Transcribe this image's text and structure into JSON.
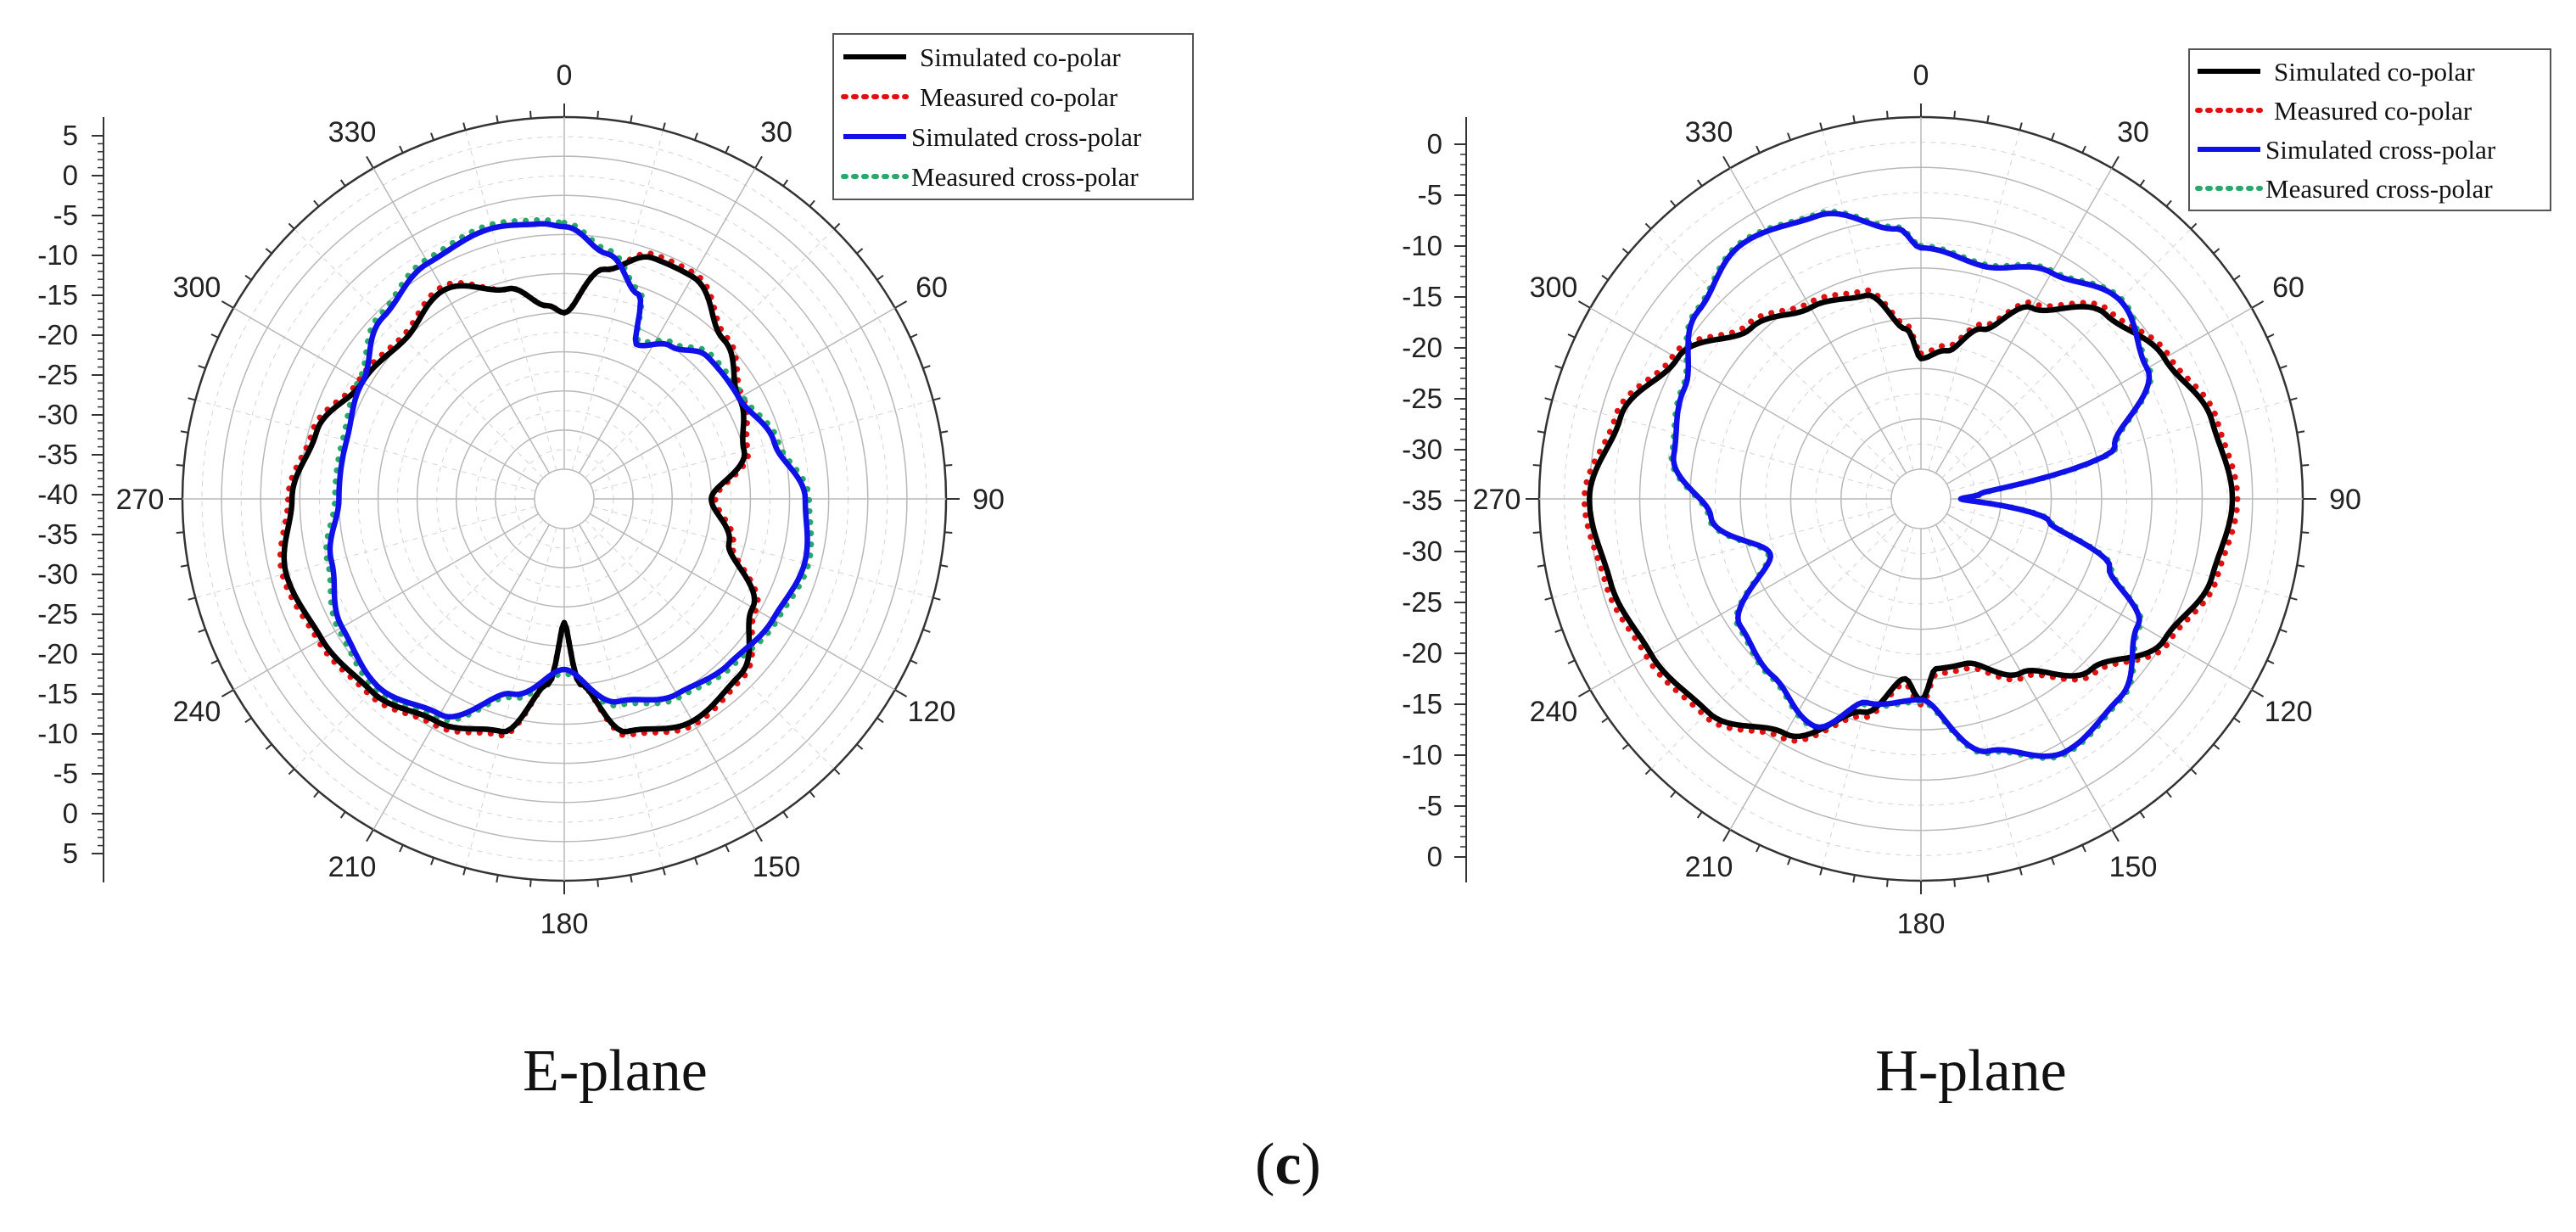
{
  "figure_label": {
    "open": "(",
    "letter": "c",
    "close": ")"
  },
  "colors": {
    "sim_co": "#000000",
    "meas_co": "#e01010",
    "sim_cross": "#1010e8",
    "meas_cross": "#2aa86a",
    "grid": "#b8b8b8",
    "axis": "#333333"
  },
  "legend_entries": [
    "Simulated co-polar",
    "Measured co-polar",
    "Simulated cross-polar",
    "Measured cross-polar"
  ],
  "chart_data": [
    {
      "type": "polar-line",
      "title": "E-plane",
      "angle_labels": [
        "0",
        "30",
        "60",
        "90",
        "120",
        "150",
        "180",
        "210",
        "240",
        "270",
        "300",
        "330"
      ],
      "radial_axis_ticks": [
        "5",
        "0",
        "-5",
        "-10",
        "-15",
        "-20",
        "-25",
        "-30",
        "-35",
        "-40",
        "-35",
        "-30",
        "-25",
        "-20",
        "-15",
        "-10",
        "-5",
        "0",
        "5"
      ],
      "radial_range_db": [
        -40,
        5
      ],
      "series": [
        {
          "name": "Simulated co-polar",
          "style": "solid",
          "angles_deg": [
            0,
            10,
            20,
            30,
            45,
            60,
            75,
            90,
            105,
            120,
            135,
            150,
            165,
            175,
            180,
            185,
            195,
            210,
            225,
            240,
            255,
            270,
            285,
            300,
            315,
            330,
            345,
            355
          ],
          "gain_db": [
            -20,
            -14,
            -11,
            -11,
            -15,
            -18,
            -20,
            -25,
            -22,
            -16,
            -12,
            -11,
            -13,
            -20,
            -28,
            -20,
            -13,
            -11,
            -9,
            -8,
            -7,
            -9,
            -11,
            -14,
            -15,
            -13,
            -16,
            -19
          ]
        },
        {
          "name": "Measured co-polar",
          "style": "dotted",
          "angles_deg": [
            0,
            10,
            20,
            30,
            45,
            60,
            75,
            90,
            105,
            120,
            135,
            150,
            165,
            175,
            180,
            185,
            195,
            210,
            225,
            240,
            255,
            270,
            285,
            300,
            315,
            330,
            345,
            355
          ],
          "gain_db": [
            -20,
            -14,
            -10.5,
            -10.5,
            -14.5,
            -17.5,
            -19.5,
            -24.5,
            -21.5,
            -15.5,
            -11.5,
            -10.5,
            -12.5,
            -20,
            -28,
            -20,
            -12.5,
            -10.5,
            -8.5,
            -7.5,
            -6.5,
            -8.5,
            -10.5,
            -13.5,
            -14.5,
            -12.5,
            -16,
            -19
          ]
        },
        {
          "name": "Simulated cross-polar",
          "style": "solid",
          "angles_deg": [
            0,
            10,
            20,
            25,
            35,
            45,
            60,
            75,
            90,
            105,
            120,
            135,
            150,
            165,
            180,
            195,
            210,
            225,
            240,
            255,
            270,
            285,
            300,
            315,
            330,
            345,
            355
          ],
          "gain_db": [
            -9,
            -12,
            -16,
            -22,
            -20,
            -18,
            -18,
            -16,
            -13,
            -12,
            -13,
            -14,
            -15,
            -17,
            -22,
            -18,
            -12,
            -10,
            -11,
            -13,
            -15,
            -15,
            -14,
            -11,
            -9,
            -8,
            -8.5
          ]
        },
        {
          "name": "Measured cross-polar",
          "style": "dotted",
          "angles_deg": [
            0,
            10,
            20,
            25,
            35,
            45,
            60,
            75,
            90,
            105,
            120,
            135,
            150,
            165,
            180,
            195,
            210,
            225,
            240,
            255,
            270,
            285,
            300,
            315,
            330,
            345,
            355
          ],
          "gain_db": [
            -8.5,
            -11.5,
            -15.5,
            -21.5,
            -19.5,
            -17.5,
            -17.5,
            -15.5,
            -12.5,
            -11.5,
            -12.5,
            -13.5,
            -14.5,
            -16.5,
            -21.5,
            -17.5,
            -11.5,
            -9.5,
            -10.5,
            -12.5,
            -14.5,
            -14.5,
            -13.5,
            -10.5,
            -8.5,
            -7.5,
            -8
          ]
        }
      ]
    },
    {
      "type": "polar-line",
      "title": "H-plane",
      "angle_labels": [
        "0",
        "30",
        "60",
        "90",
        "120",
        "150",
        "180",
        "210",
        "240",
        "270",
        "300",
        "330"
      ],
      "radial_axis_ticks": [
        "0",
        "-5",
        "-10",
        "-15",
        "-20",
        "-25",
        "-30",
        "-35",
        "-30",
        "-25",
        "-20",
        "-15",
        "-10",
        "-5",
        "0"
      ],
      "radial_range_db": [
        -35,
        0
      ],
      "series": [
        {
          "name": "Simulated co-polar",
          "style": "solid",
          "angles_deg": [
            0,
            10,
            20,
            30,
            45,
            60,
            75,
            90,
            105,
            120,
            135,
            150,
            165,
            175,
            180,
            185,
            195,
            210,
            225,
            240,
            255,
            270,
            285,
            300,
            315,
            330,
            345,
            355
          ],
          "gain_db": [
            -24,
            -23,
            -20,
            -16,
            -12,
            -10,
            -8,
            -7,
            -8,
            -10,
            -14,
            -18,
            -21,
            -21,
            -18,
            -20,
            -16,
            -11,
            -8,
            -7,
            -6,
            -5,
            -7,
            -10,
            -14,
            -16,
            -17,
            -21
          ]
        },
        {
          "name": "Measured co-polar",
          "style": "dotted",
          "angles_deg": [
            0,
            10,
            20,
            30,
            45,
            60,
            75,
            90,
            105,
            120,
            135,
            150,
            165,
            175,
            180,
            185,
            195,
            210,
            225,
            240,
            255,
            270,
            285,
            300,
            315,
            330,
            345,
            355
          ],
          "gain_db": [
            -23.5,
            -22.5,
            -19.5,
            -15.5,
            -11.5,
            -9.5,
            -7.5,
            -6.5,
            -7.5,
            -9.5,
            -13.5,
            -17.5,
            -20.5,
            -20.5,
            -17.5,
            -19.5,
            -15.5,
            -10.5,
            -7.5,
            -6.5,
            -5.5,
            -4.5,
            -6.5,
            -9.5,
            -13.5,
            -15.5,
            -16.5,
            -20.5
          ]
        },
        {
          "name": "Simulated cross-polar",
          "style": "solid",
          "angles_deg": [
            0,
            15,
            30,
            45,
            60,
            75,
            85,
            90,
            100,
            110,
            120,
            135,
            150,
            165,
            180,
            195,
            205,
            220,
            235,
            250,
            265,
            280,
            295,
            310,
            325,
            340,
            355
          ],
          "gain_db": [
            -13,
            -14,
            -12,
            -10,
            -12,
            -18,
            -32,
            -34,
            -25,
            -18,
            -13,
            -10,
            -9,
            -12,
            -18,
            -17,
            -13,
            -15,
            -16,
            -22,
            -17,
            -13,
            -12,
            -9,
            -7,
            -8,
            -11
          ]
        },
        {
          "name": "Measured cross-polar",
          "style": "dotted",
          "angles_deg": [
            0,
            15,
            30,
            45,
            60,
            75,
            85,
            90,
            100,
            110,
            120,
            135,
            150,
            165,
            180,
            195,
            205,
            220,
            235,
            250,
            265,
            280,
            295,
            310,
            325,
            340,
            355
          ],
          "gain_db": [
            -12.8,
            -13.8,
            -11.8,
            -9.8,
            -11.8,
            -17.8,
            -31.8,
            -33.8,
            -24.8,
            -17.8,
            -12.8,
            -9.8,
            -8.8,
            -11.8,
            -17.8,
            -16.8,
            -12.8,
            -14.8,
            -15.8,
            -21.8,
            -16.8,
            -12.8,
            -11.8,
            -8.8,
            -6.8,
            -7.8,
            -10.8
          ]
        }
      ]
    }
  ]
}
